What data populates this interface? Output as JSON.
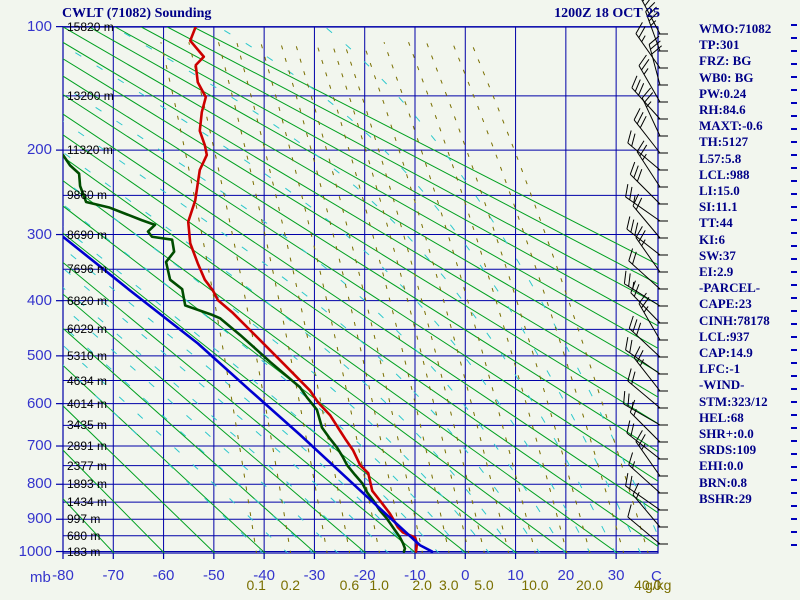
{
  "title": "CWLT (71082) Sounding",
  "datetime": "1200Z 18 OCT 25",
  "panel": {
    "lines": [
      "WMO:71082",
      "TP:301",
      "FRZ: BG",
      "WB0: BG",
      "PW:0.24",
      "RH:84.6",
      "MAXT:-0.6",
      "TH:5127",
      "L57:5.8",
      "LCL:988",
      "LI:15.0",
      "SI:11.1",
      "TT:44",
      "KI:6",
      "SW:37",
      "EI:2.9",
      "-PARCEL-",
      "CAPE:23",
      "CINH:78178",
      "LCL:937",
      "CAP:14.9",
      "LFC:-1",
      "-WIND-",
      "STM:323/12",
      "HEL:68",
      "SHR+:0.0",
      "SRDS:109",
      "EHI:0.0",
      "BRN:0.8",
      "BSHR:29"
    ]
  },
  "axes": {
    "pressure_unit": "mb",
    "pressure_ticks": [
      100,
      200,
      300,
      400,
      500,
      600,
      700,
      800,
      900,
      1000
    ],
    "temp_unit": "C",
    "temp_ticks": [
      -80,
      -70,
      -60,
      -50,
      -40,
      -30,
      -20,
      -10,
      0,
      10,
      20,
      30
    ],
    "mixing_unit": "g/kg",
    "mixing_labels": [
      "0.1",
      "0.2",
      "0.6",
      "1.0",
      "2.0",
      "3.0",
      "5.0",
      "10.0",
      "20.0",
      "40.0"
    ],
    "mixing_label_values": [
      0.1,
      0.2,
      0.6,
      1.0,
      2.0,
      3.0,
      5.0,
      10.0,
      20.0,
      40.0
    ]
  },
  "heights": [
    {
      "p": 100,
      "label": "15820 m"
    },
    {
      "p": 150,
      "label": "13200 m"
    },
    {
      "p": 200,
      "label": "11320 m"
    },
    {
      "p": 250,
      "label": "9860 m"
    },
    {
      "p": 300,
      "label": "8690 m"
    },
    {
      "p": 350,
      "label": "7696 m"
    },
    {
      "p": 400,
      "label": "6820 m"
    },
    {
      "p": 450,
      "label": "6029 m"
    },
    {
      "p": 500,
      "label": "5310 m"
    },
    {
      "p": 550,
      "label": "4634 m"
    },
    {
      "p": 600,
      "label": "4014 m"
    },
    {
      "p": 650,
      "label": "3435 m"
    },
    {
      "p": 700,
      "label": "2891 m"
    },
    {
      "p": 750,
      "label": "2377 m"
    },
    {
      "p": 800,
      "label": "1893 m"
    },
    {
      "p": 850,
      "label": "1434 m"
    },
    {
      "p": 900,
      "label": "997 m"
    },
    {
      "p": 950,
      "label": "680 m"
    },
    {
      "p": 1000,
      "label": "183 m"
    }
  ],
  "chart_data": {
    "type": "line",
    "title": "CWLT (71082) Sounding",
    "x_axis": "temperature_C",
    "y_axis": "pressure_mb",
    "x_range": [
      -80,
      38.3
    ],
    "pressure_range": [
      100,
      1007
    ],
    "isobar_step_mb": 50,
    "isotherm_step_C": 10,
    "dry_adiabats_theta_K": [
      203,
      213,
      223,
      233,
      243,
      253,
      263,
      273,
      283,
      293,
      303,
      313,
      323,
      333,
      343,
      353,
      363,
      373,
      383,
      393,
      403,
      413,
      423
    ],
    "moist_adiabats_surface_T_C": [
      -40,
      -35,
      -30,
      -25,
      -20,
      -15,
      -10,
      -5,
      0,
      5,
      10,
      15,
      20,
      25,
      30,
      35,
      40
    ],
    "mixing_ratio_lines_gkg": [
      0.1,
      0.2,
      0.4,
      0.6,
      1.0,
      1.5,
      2.0,
      3.0,
      4.0,
      5.0,
      7.0,
      10.0,
      15.0,
      20.0,
      30.0,
      40.0
    ],
    "series": [
      {
        "name": "temperature",
        "color": "#cc0000",
        "points": [
          [
            100,
            -53.6
          ],
          [
            109,
            -54.7
          ],
          [
            120,
            -52.0
          ],
          [
            126,
            -53.6
          ],
          [
            139,
            -53.2
          ],
          [
            151,
            -51.6
          ],
          [
            164,
            -52.4
          ],
          [
            181,
            -52.8
          ],
          [
            195,
            -51.8
          ],
          [
            205,
            -51.4
          ],
          [
            221,
            -52.8
          ],
          [
            256,
            -53.7
          ],
          [
            283,
            -55.1
          ],
          [
            312,
            -54.7
          ],
          [
            341,
            -53.2
          ],
          [
            366,
            -51.8
          ],
          [
            383,
            -50.2
          ],
          [
            399,
            -49.2
          ],
          [
            421,
            -46.2
          ],
          [
            470,
            -40.8
          ],
          [
            518,
            -35.9
          ],
          [
            571,
            -30.9
          ],
          [
            597,
            -29.3
          ],
          [
            626,
            -26.9
          ],
          [
            663,
            -24.9
          ],
          [
            682,
            -23.9
          ],
          [
            711,
            -22.3
          ],
          [
            749,
            -20.9
          ],
          [
            770,
            -19.3
          ],
          [
            818,
            -18.5
          ],
          [
            845,
            -17.0
          ],
          [
            883,
            -15.0
          ],
          [
            924,
            -13.4
          ],
          [
            940,
            -12.4
          ],
          [
            949,
            -11.0
          ],
          [
            955,
            -10.0
          ],
          [
            974,
            -9.6
          ],
          [
            1000,
            -9.8
          ]
        ]
      },
      {
        "name": "dewpoint",
        "color": "#004d00",
        "points": [
          [
            205,
            -80.0
          ],
          [
            216,
            -78.6
          ],
          [
            225,
            -76.8
          ],
          [
            239,
            -76.6
          ],
          [
            258,
            -75.4
          ],
          [
            265,
            -70.7
          ],
          [
            281,
            -64.3
          ],
          [
            287,
            -61.7
          ],
          [
            296,
            -63.1
          ],
          [
            303,
            -62.3
          ],
          [
            307,
            -58.3
          ],
          [
            324,
            -57.9
          ],
          [
            339,
            -59.5
          ],
          [
            366,
            -58.7
          ],
          [
            381,
            -56.3
          ],
          [
            408,
            -55.7
          ],
          [
            424,
            -50.4
          ],
          [
            430,
            -48.8
          ],
          [
            460,
            -44.8
          ],
          [
            512,
            -38.8
          ],
          [
            564,
            -32.9
          ],
          [
            586,
            -31.5
          ],
          [
            614,
            -29.5
          ],
          [
            655,
            -28.5
          ],
          [
            682,
            -26.9
          ],
          [
            704,
            -25.5
          ],
          [
            729,
            -24.3
          ],
          [
            749,
            -23.5
          ],
          [
            775,
            -21.9
          ],
          [
            797,
            -20.5
          ],
          [
            823,
            -19.5
          ],
          [
            845,
            -18.3
          ],
          [
            874,
            -17.0
          ],
          [
            898,
            -15.6
          ],
          [
            933,
            -14.0
          ],
          [
            955,
            -13.0
          ],
          [
            973,
            -12.4
          ],
          [
            990,
            -12.0
          ],
          [
            1000,
            -12.2
          ]
        ]
      },
      {
        "name": "wet-bulb-parcel",
        "color": "#0000d0",
        "points": [
          [
            303,
            -80.0
          ],
          [
            383,
            -66.7
          ],
          [
            476,
            -53.2
          ],
          [
            571,
            -42.8
          ],
          [
            672,
            -32.9
          ],
          [
            817,
            -20.9
          ],
          [
            980,
            -9.0
          ],
          [
            1000,
            -6.6
          ]
        ]
      }
    ],
    "wind_barbs": [
      [
        34,
        28,
        3,
        0
      ],
      [
        51,
        20,
        3,
        1
      ],
      [
        68,
        35,
        2,
        1
      ],
      [
        85,
        15,
        3,
        0
      ],
      [
        102,
        30,
        2,
        1
      ],
      [
        119,
        42,
        3,
        0
      ],
      [
        136,
        25,
        2,
        1
      ],
      [
        153,
        38,
        3,
        0
      ],
      [
        170,
        50,
        2,
        0
      ],
      [
        187,
        33,
        2,
        1
      ],
      [
        204,
        45,
        3,
        0
      ],
      [
        221,
        55,
        2,
        1
      ],
      [
        238,
        40,
        2,
        0
      ],
      [
        255,
        52,
        3,
        0
      ],
      [
        272,
        35,
        2,
        1
      ],
      [
        289,
        48,
        2,
        0
      ],
      [
        306,
        58,
        2,
        1
      ],
      [
        323,
        44,
        2,
        0
      ],
      [
        340,
        30,
        2,
        1
      ],
      [
        357,
        47,
        3,
        0
      ],
      [
        374,
        55,
        2,
        0
      ],
      [
        391,
        38,
        2,
        1
      ],
      [
        408,
        50,
        2,
        0
      ],
      [
        425,
        60,
        2,
        1
      ],
      [
        442,
        45,
        1,
        1
      ],
      [
        459,
        52,
        2,
        0
      ],
      [
        476,
        35,
        2,
        1
      ],
      [
        493,
        48,
        1,
        1
      ],
      [
        510,
        55,
        2,
        0
      ],
      [
        527,
        40,
        1,
        1
      ],
      [
        544,
        50,
        1,
        0
      ]
    ]
  },
  "colors": {
    "background": "#f2f6ee",
    "grid": "#0000a8",
    "dry_adiabat": "#00a020",
    "moist_adiabat": "#2cc8cc",
    "mixing_ratio": "#7a6f00",
    "temperature_trace": "#cc0000",
    "dewpoint_trace": "#004d00",
    "parcel_trace": "#0000d0",
    "axis_text": "#3434cc",
    "header_text": "#000088",
    "barb": "#000000"
  }
}
